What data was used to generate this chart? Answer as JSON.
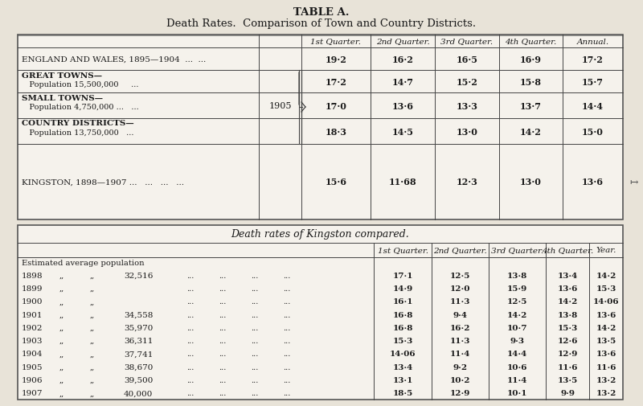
{
  "title1": "TABLE A.",
  "title2": "Death Rates.  Comparison of Town and Country Districts.",
  "bg_color": "#e8e3d8",
  "table1_header": [
    "1st Quarter.",
    "2nd Quarter.",
    "3rd Quarter.",
    "4th Quarter.",
    "Annual."
  ],
  "table1_rows": [
    {
      "label_line1": "ENGLAND AND WALES, 1895—1904  ...  ...",
      "label_line2": "",
      "values": [
        "19·2",
        "16·2",
        "16·5",
        "16·9",
        "17·2"
      ],
      "year_col": ""
    },
    {
      "label_line1": "GREAT TOWNS—",
      "label_line2": "   Population 15,500,000     ...",
      "values": [
        "17·2",
        "14·7",
        "15·2",
        "15·8",
        "15·7"
      ],
      "year_col": ""
    },
    {
      "label_line1": "SMALL TOWNS—",
      "label_line2": "   Population 4,750,000 ...   ...",
      "values": [
        "17·0",
        "13·6",
        "13·3",
        "13·7",
        "14·4"
      ],
      "year_col": "1905"
    },
    {
      "label_line1": "COUNTRY DISTRICTS—",
      "label_line2": "   Population 13,750,000   ...",
      "values": [
        "18·3",
        "14·5",
        "13·0",
        "14·2",
        "15·0"
      ],
      "year_col": ""
    },
    {
      "label_line1": "KINGSTON, 1898—1907 ...   ...   ...   ...",
      "label_line2": "",
      "values": [
        "15·6",
        "11·68",
        "12·3",
        "13·0",
        "13·6"
      ],
      "year_col": ""
    }
  ],
  "table2_title": "Death rates of Kingston compared.",
  "table2_header": [
    "1st Quarter.",
    "2nd Quarter.",
    "3rd Quarter.",
    "4th Quarter.",
    "Year."
  ],
  "table2_note": "Estimated average population",
  "table2_rows": [
    {
      "year": "1898",
      "comma1": ",,",
      "comma2": ",,",
      "pop": "32,516",
      "q1": "17·1",
      "q2": "12·5",
      "q3": "13·8",
      "q4": "13·4",
      "annual": "14·2"
    },
    {
      "year": "1899",
      "comma1": ",,",
      "comma2": ",,",
      "pop": "",
      "q1": "14·9",
      "q2": "12·0",
      "q3": "15·9",
      "q4": "13·6",
      "annual": "15·3"
    },
    {
      "year": "1900",
      "comma1": ",,",
      "comma2": ",,",
      "pop": "",
      "q1": "16·1",
      "q2": "11·3",
      "q3": "12·5",
      "q4": "14·2",
      "annual": "14·06"
    },
    {
      "year": "1901",
      "comma1": ",,",
      "comma2": ",,",
      "pop": "34,558",
      "q1": "16·8",
      "q2": "9·4",
      "q3": "14·2",
      "q4": "13·8",
      "annual": "13·6"
    },
    {
      "year": "1902",
      "comma1": ",,",
      "comma2": ",,",
      "pop": "35,970",
      "q1": "16·8",
      "q2": "16·2",
      "q3": "10·7",
      "q4": "15·3",
      "annual": "14·2"
    },
    {
      "year": "1903",
      "comma1": ",,",
      "comma2": ",,",
      "pop": "36,311",
      "q1": "15·3",
      "q2": "11·3",
      "q3": "9·3",
      "q4": "12·6",
      "annual": "13·5"
    },
    {
      "year": "1904",
      "comma1": ",,",
      "comma2": ",,",
      "pop": "37,741",
      "q1": "14·06",
      "q2": "11·4",
      "q3": "14·4",
      "q4": "12·9",
      "annual": "13·6"
    },
    {
      "year": "1905",
      "comma1": ",,",
      "comma2": ",,",
      "pop": "38,670",
      "q1": "13·4",
      "q2": "9·2",
      "q3": "10·6",
      "q4": "11·6",
      "annual": "11·6"
    },
    {
      "year": "1906",
      "comma1": ",,",
      "comma2": ",,",
      "pop": "39,500",
      "q1": "13·1",
      "q2": "10·2",
      "q3": "11·4",
      "q4": "13·5",
      "annual": "13·2"
    },
    {
      "year": "1907",
      "comma1": ",,",
      "comma2": ",,",
      "pop": "40,000",
      "q1": "18·5",
      "q2": "12·9",
      "q3": "10·1",
      "q4": "9·9",
      "annual": "13·2"
    }
  ]
}
